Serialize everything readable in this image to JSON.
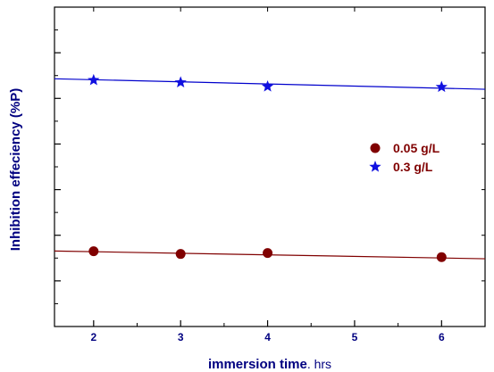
{
  "chart_data": {
    "type": "scatter",
    "xlabel": "immersion time",
    "xlabel_unit": ". hrs",
    "ylabel": "Inhibition effeciency (%P)",
    "xlim": [
      1.55,
      6.5
    ],
    "ylim": [
      0,
      7
    ],
    "x_ticks": [
      2,
      3,
      4,
      5,
      6
    ],
    "x_tick_labels": [
      "2",
      "3",
      "4",
      "5",
      "6"
    ],
    "y_ticks": [
      1,
      2,
      3,
      4,
      5,
      6
    ],
    "grid": false,
    "legend_position": "right-middle",
    "series": [
      {
        "name": "0.05 g/L",
        "marker": "circle",
        "color": "#800000",
        "x": [
          2,
          3,
          4,
          6
        ],
        "y": [
          1.65,
          1.59,
          1.61,
          1.52
        ],
        "fit": [
          1.655,
          1.485
        ]
      },
      {
        "name": "0.3 g/L",
        "marker": "star",
        "color": "#1010e0",
        "x": [
          2,
          3,
          4,
          6
        ],
        "y": [
          5.4,
          5.35,
          5.26,
          5.25
        ],
        "fit": [
          5.43,
          5.2
        ]
      }
    ],
    "colors": {
      "axis": "#000000",
      "axis_title": "#000080",
      "tick_label": "#000080",
      "legend_text": "#800000",
      "fit_line_1": "#800000",
      "fit_line_2": "#0000cc"
    }
  }
}
